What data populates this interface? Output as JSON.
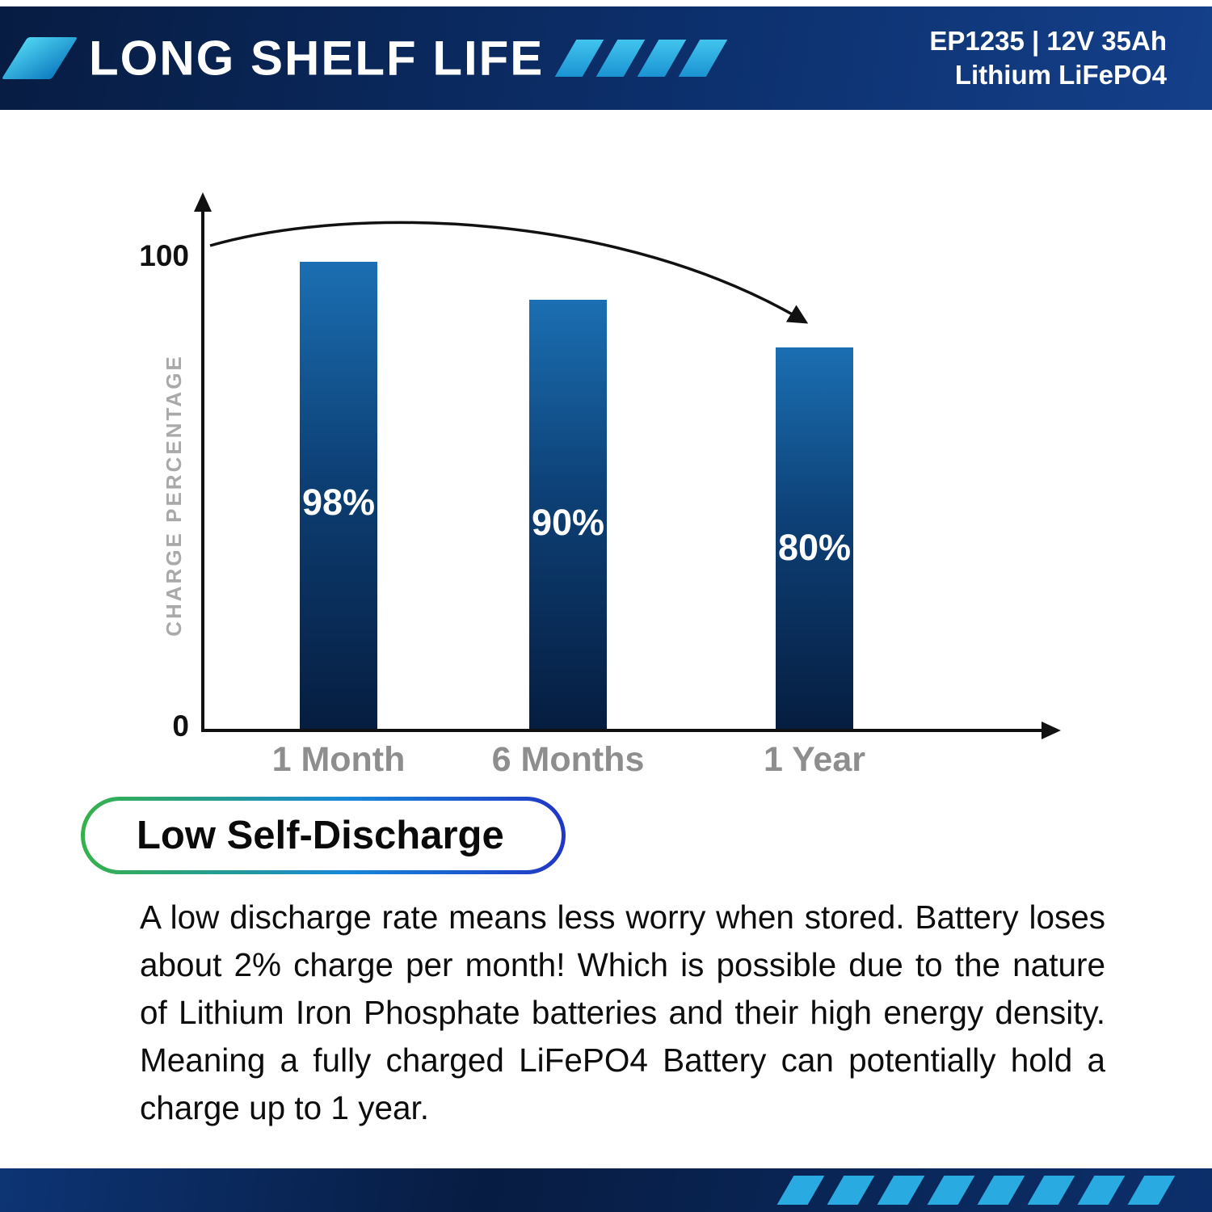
{
  "header": {
    "title": "LONG SHELF LIFE",
    "product_code": "EP1235 | 12V 35Ah",
    "product_type": "Lithium LiFePO4"
  },
  "chart_data": {
    "type": "bar",
    "title": "",
    "categories": [
      "1 Month",
      "6 Months",
      "1 Year"
    ],
    "values": [
      98,
      90,
      80
    ],
    "bar_labels": [
      "98%",
      "90%",
      "80%"
    ],
    "xlabel": "",
    "ylabel": "CHARGE PERCENTAGE",
    "ylim": [
      0,
      100
    ],
    "ytick_labels": [
      "0",
      "100"
    ],
    "grid": false,
    "legend": false,
    "annotation": "curved arrow descending from the 100 mark to the top of the 1 Year bar"
  },
  "badge": {
    "label": "Low Self-Discharge"
  },
  "description": "A low discharge rate means less worry when stored. Battery loses about 2% charge per month! Which is possible due to the nature of Lithium Iron Phosphate batteries and their high energy density. Meaning a fully charged LiFePO4 Battery can potentially hold a charge up to 1 year.",
  "icons": {
    "logo": "flag-icon",
    "header_decoration": "slash-icon",
    "footer_decoration": "slash-icon",
    "chart_annotation": "curved-decline-arrow-icon"
  },
  "colors": {
    "navy": "#0b2a5e",
    "navy_dark": "#071c42",
    "cyan": "#29abe2",
    "bar_top": "#1b6fb2",
    "bar_bottom": "#061d40",
    "badge_green": "#35b24a",
    "badge_blue": "#2136c6",
    "tick_gray": "#8e8e8e",
    "ylabel_gray": "#a9a9a9",
    "text_black": "#111111"
  }
}
